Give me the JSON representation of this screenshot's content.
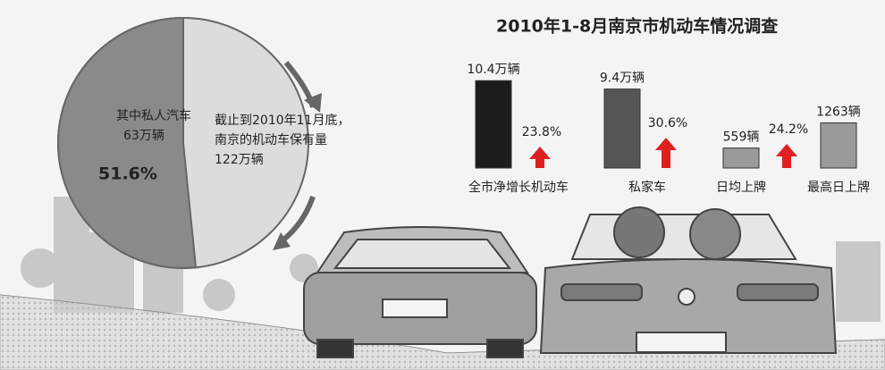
{
  "title": "2010年1-8月南京市机动车情况调查",
  "pie": {
    "label": "其中私人汽车",
    "count": "63万辆",
    "value": 51.6,
    "value_label": "51.6%",
    "color": "#8a8a8a",
    "rest_color": "#dcdcdc"
  },
  "note": [
    "截止到2010年11月底，",
    "南京的机动车保有量",
    "122万辆"
  ],
  "groups": [
    {
      "growth": "23.8%",
      "bars": [
        {
          "category": "全市净增长机动车",
          "value": 10.4,
          "value_label": "10.4万辆",
          "color": "#1c1c1c"
        }
      ]
    },
    {
      "growth": "30.6%",
      "bars": [
        {
          "category": "私家车",
          "value": 9.4,
          "value_label": "9.4万辆",
          "color": "#555555"
        }
      ]
    },
    {
      "growth": "24.2%",
      "bars": [
        {
          "category": "日均上牌",
          "value": 559,
          "value_label": "559辆",
          "color": "#9a9a9a"
        },
        {
          "category": "最高日上牌",
          "value": 1263,
          "value_label": "1263辆",
          "color": "#9a9a9a"
        }
      ]
    }
  ]
}
